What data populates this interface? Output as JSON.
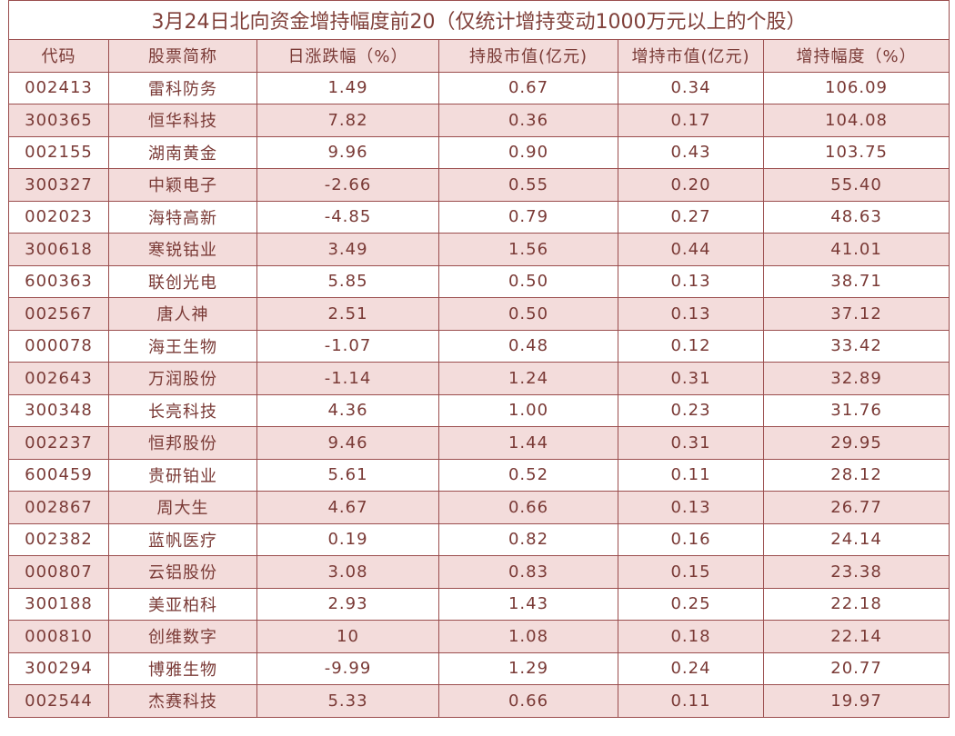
{
  "title": "3月24日北向资金增持幅度前20（仅统计增持变动1000万元以上的个股）",
  "columns": [
    "代码",
    "股票简称",
    "日涨跌幅（%）",
    "持股市值(亿元)",
    "增持市值(亿元)",
    "增持幅度（%）"
  ],
  "rows": [
    [
      "002413",
      "雷科防务",
      "1.49",
      "0.67",
      "0.34",
      "106.09"
    ],
    [
      "300365",
      "恒华科技",
      "7.82",
      "0.36",
      "0.17",
      "104.08"
    ],
    [
      "002155",
      "湖南黄金",
      "9.96",
      "0.90",
      "0.43",
      "103.75"
    ],
    [
      "300327",
      "中颖电子",
      "-2.66",
      "0.55",
      "0.20",
      "55.40"
    ],
    [
      "002023",
      "海特高新",
      "-4.85",
      "0.79",
      "0.27",
      "48.63"
    ],
    [
      "300618",
      "寒锐钴业",
      "3.49",
      "1.56",
      "0.44",
      "41.01"
    ],
    [
      "600363",
      "联创光电",
      "5.85",
      "0.50",
      "0.13",
      "38.71"
    ],
    [
      "002567",
      "唐人神",
      "2.51",
      "0.50",
      "0.13",
      "37.12"
    ],
    [
      "000078",
      "海王生物",
      "-1.07",
      "0.48",
      "0.12",
      "33.42"
    ],
    [
      "002643",
      "万润股份",
      "-1.14",
      "1.24",
      "0.31",
      "32.89"
    ],
    [
      "300348",
      "长亮科技",
      "4.36",
      "1.00",
      "0.23",
      "31.76"
    ],
    [
      "002237",
      "恒邦股份",
      "9.46",
      "1.44",
      "0.31",
      "29.95"
    ],
    [
      "600459",
      "贵研铂业",
      "5.61",
      "0.52",
      "0.11",
      "28.12"
    ],
    [
      "002867",
      "周大生",
      "4.67",
      "0.66",
      "0.13",
      "26.77"
    ],
    [
      "002382",
      "蓝帆医疗",
      "0.19",
      "0.82",
      "0.16",
      "24.14"
    ],
    [
      "000807",
      "云铝股份",
      "3.08",
      "0.83",
      "0.15",
      "23.38"
    ],
    [
      "300188",
      "美亚柏科",
      "2.93",
      "1.43",
      "0.25",
      "22.18"
    ],
    [
      "000810",
      "创维数字",
      "10",
      "1.08",
      "0.18",
      "22.14"
    ],
    [
      "300294",
      "博雅生物",
      "-9.99",
      "1.29",
      "0.24",
      "20.77"
    ],
    [
      "002544",
      "杰赛科技",
      "5.33",
      "0.66",
      "0.11",
      "19.97"
    ]
  ],
  "colors": {
    "border": "#9b4e4e",
    "header_bg": "#f3dcdb",
    "text": "#7a3a36"
  }
}
